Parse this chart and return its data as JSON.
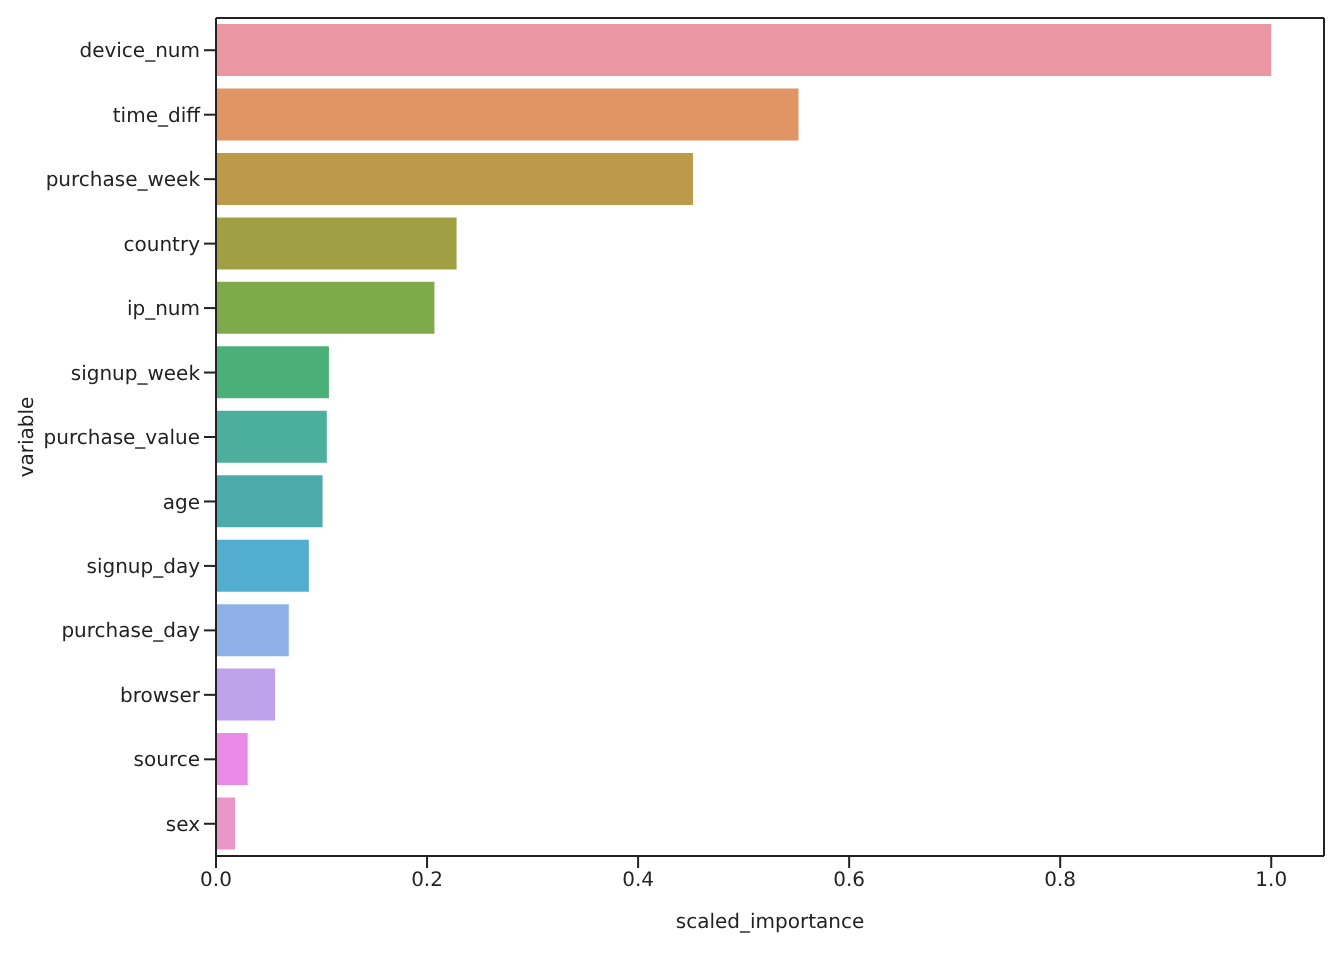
{
  "chart_data": {
    "type": "bar",
    "orientation": "horizontal",
    "xlabel": "scaled_importance",
    "ylabel": "variable",
    "categories": [
      "device_num",
      "time_diff",
      "purchase_week",
      "country",
      "ip_num",
      "signup_week",
      "purchase_value",
      "age",
      "signup_day",
      "purchase_day",
      "browser",
      "source",
      "sex"
    ],
    "values": [
      1.0,
      0.552,
      0.452,
      0.228,
      0.207,
      0.107,
      0.105,
      0.101,
      0.088,
      0.069,
      0.056,
      0.03,
      0.018
    ],
    "colors": [
      "#ea96a3",
      "#e19464",
      "#bd9a4a",
      "#a09f44",
      "#7eaa4b",
      "#4bb077",
      "#4caf9e",
      "#4eabab",
      "#52adce",
      "#8fb0e9",
      "#bea3ea",
      "#e88ae6",
      "#e897c6"
    ],
    "xlim": [
      0,
      1.05
    ],
    "xticks": [
      {
        "value": 0,
        "label": "0.0"
      },
      {
        "value": 0.2,
        "label": "0.2"
      },
      {
        "value": 0.4,
        "label": "0.4"
      },
      {
        "value": 0.6,
        "label": "0.6"
      },
      {
        "value": 0.8,
        "label": "0.8"
      },
      {
        "value": 1.0,
        "label": "1.0"
      }
    ],
    "grid": false
  }
}
